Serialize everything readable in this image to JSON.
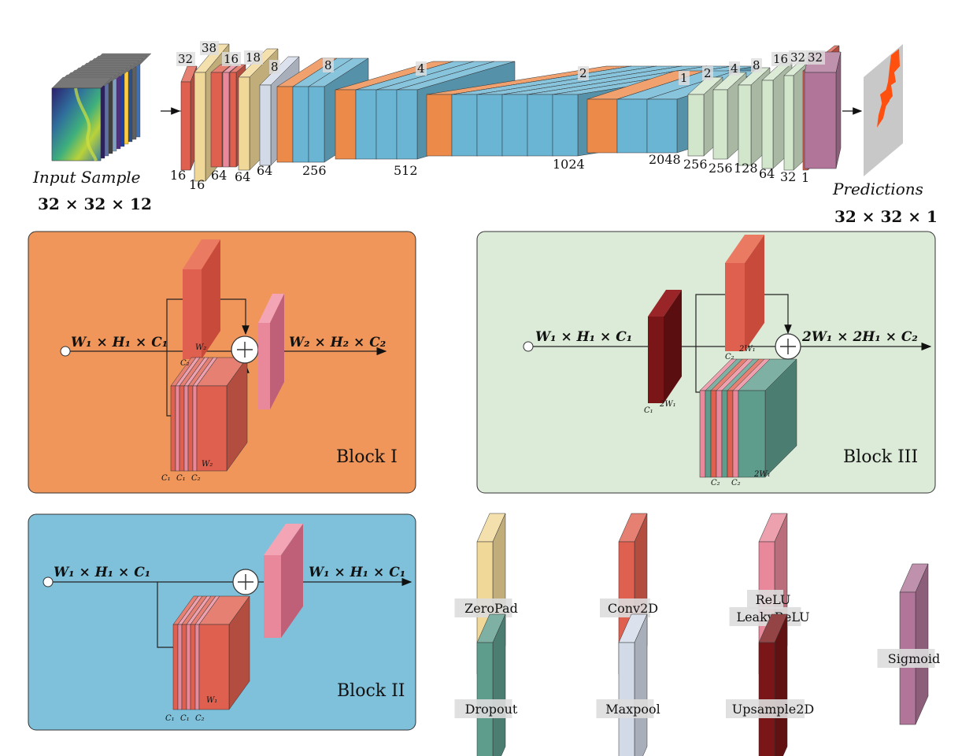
{
  "title_input": "Input Sample",
  "input_shape": "32 × 32 × 12",
  "title_output": "Predictions",
  "output_shape": "32 × 32 × 1",
  "top_labels": {
    "upper": [
      "32",
      "38",
      "16",
      "18",
      "8",
      "8",
      "4",
      "2",
      "1",
      "2",
      "4",
      "8",
      "16",
      "32",
      "32"
    ],
    "lower": [
      "16",
      "16",
      "64",
      "64",
      "64",
      "256",
      "512",
      "1024",
      "2048",
      "256",
      "256",
      "128",
      "64",
      "32",
      "1"
    ]
  },
  "block1": {
    "name": "Block I",
    "in": "W₁ × H₁ × C₁",
    "out": "W₂ × H₂ × C₂",
    "sub": {
      "c2": "C₂",
      "w2": "W₂",
      "w2b": "W₂",
      "c1a": "C₁",
      "c1b": "C₁",
      "c2b": "C₂"
    }
  },
  "block2": {
    "name": "Block II",
    "in": "W₁ × H₁ × C₁",
    "out": "W₁ × H₁ × C₁",
    "sub": {
      "w1": "W₁",
      "c1a": "C₁",
      "c1b": "C₁",
      "c2": "C₂"
    }
  },
  "block3": {
    "name": "Block III",
    "in": "W₁ × H₁ × C₁",
    "out": "2W₁ × 2H₁ × C₂",
    "sub": {
      "c1": "C₁",
      "w2a": "2W₁",
      "c2a": "C₂",
      "w2b": "2W₁",
      "c2b": "C₂",
      "c2c": "C₂",
      "w2c": "2W₁"
    }
  },
  "legend": {
    "zeropad": "ZeroPad",
    "conv2d": "Conv2D",
    "relu": "ReLU",
    "leakyrelu": "LeakyReLU",
    "sigmoid": "Sigmoid",
    "dropout": "Dropout",
    "maxpool": "Maxpool",
    "upsample": "Upsample2D"
  },
  "colors": {
    "orange_block": "#f0965a",
    "blue_block": "#7fc1db",
    "green_block": "#dcebd8",
    "conv": "#e06050",
    "zeropad": "#f0d898",
    "relu": "#e8889a",
    "sigmoid": "#b07598",
    "dropout": "#5e9c8c",
    "maxpool": "#d2dae8",
    "upsample": "#7a1518",
    "resblue": "#6bb5d4",
    "resorange": "#ec8a4a",
    "upgreen": "#d2e6cc"
  }
}
